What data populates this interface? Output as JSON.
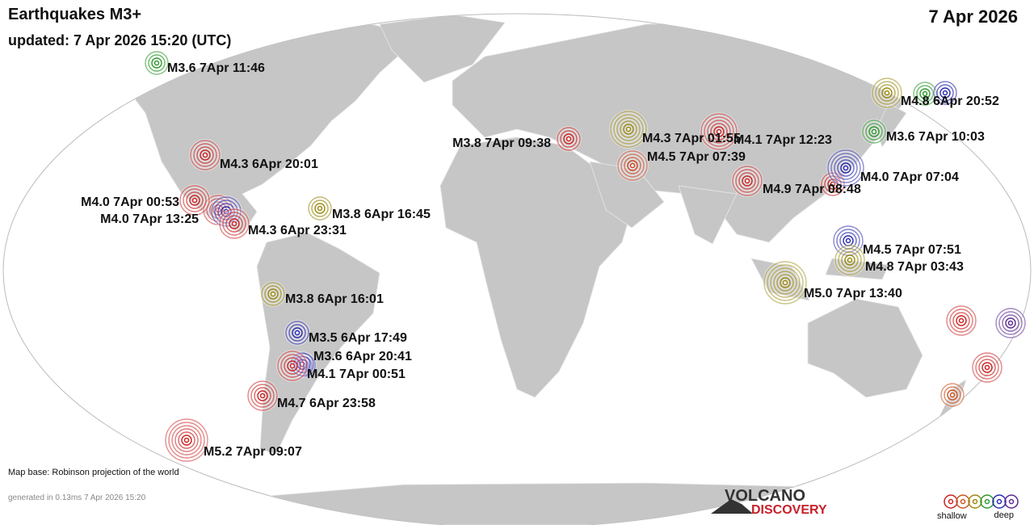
{
  "header": {
    "title": "Earthquakes M3+",
    "updated": "updated:  7 Apr 2026 15:20 (UTC)",
    "date": "7 Apr 2026"
  },
  "quakes": [
    {
      "label": "M3.6  7Apr 11:46",
      "color": "#2e9a2e"
    },
    {
      "label": "M4.3  6Apr 20:01",
      "color": "#cc2222"
    },
    {
      "label": "M4.0  7Apr 00:53",
      "color": "#cc2222"
    },
    {
      "label": "M4.0  7Apr 13:25",
      "color": "#2a2ab0"
    },
    {
      "label": "M4.3  6Apr 23:31",
      "color": "#cc2222"
    },
    {
      "label": "M3.8  6Apr 16:45",
      "color": "#9a8a10"
    },
    {
      "label": "M3.8  6Apr 16:01",
      "color": "#9a8a10"
    },
    {
      "label": "M3.5  6Apr 17:49",
      "color": "#2a2ab0"
    },
    {
      "label": "M3.6  6Apr 20:41",
      "color": "#2a2ab0"
    },
    {
      "label": "M4.1  7Apr 00:51",
      "color": "#cc2222"
    },
    {
      "label": "M4.7  6Apr 23:58",
      "color": "#cc2222"
    },
    {
      "label": "M5.2  7Apr 09:07",
      "color": "#cc2222"
    },
    {
      "label": "M3.8  7Apr 09:38",
      "color": "#cc2222"
    },
    {
      "label": "M4.3  7Apr 01:55",
      "color": "#9a8a10"
    },
    {
      "label": "M4.1  7Apr 12:23",
      "color": "#cc2222"
    },
    {
      "label": "M4.5  7Apr 07:39",
      "color": "#cc4422"
    },
    {
      "label": "M4.9  7Apr 08:48",
      "color": "#cc2222"
    },
    {
      "label": "M4.0  7Apr 07:04",
      "color": "#2a2ab0"
    },
    {
      "label": "M3.6  7Apr 10:03",
      "color": "#2e9a2e"
    },
    {
      "label": "M4.8  6Apr 20:52",
      "color": "#9a8a10"
    },
    {
      "label": "M4.5  7Apr 07:51",
      "color": "#2a2ab0"
    },
    {
      "label": "M4.8  7Apr 03:43",
      "color": "#9a8a10"
    },
    {
      "label": "M5.0  7Apr 13:40",
      "color": "#9a8a10"
    }
  ],
  "footer": {
    "map_base": "Map base: Robinson projection of the world",
    "generated": "generated in 0.13ms  7 Apr 2026 15:20"
  },
  "logo": {
    "line1": "VOLCANO",
    "line2": "DISCOVERY"
  },
  "legend": {
    "shallow": "shallow",
    "deep": "deep"
  }
}
